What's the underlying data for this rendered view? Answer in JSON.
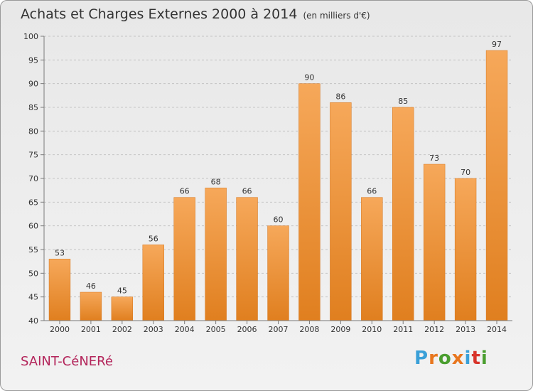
{
  "title": "Achats et Charges Externes 2000 à 2014",
  "subtitle": "(en milliers d'€)",
  "commune": "SAINT-CéNERé",
  "brand": {
    "text": "Proxiti",
    "letter_colors": [
      "#3aa0d8",
      "#e8761e",
      "#4a9e2f",
      "#e8761e",
      "#3aa0d8",
      "#d8342a",
      "#4a9e2f"
    ]
  },
  "colors": {
    "bar_top": "#f6a85a",
    "bar_bottom": "#e07f1f",
    "bar_edge": "#d5741a",
    "grid": "#c4c4c4",
    "axis": "#7a7a7a",
    "label": "#333333",
    "commune": "#b3245a"
  },
  "chart_data": {
    "type": "bar",
    "categories": [
      "2000",
      "2001",
      "2002",
      "2003",
      "2004",
      "2005",
      "2006",
      "2007",
      "2008",
      "2009",
      "2010",
      "2011",
      "2012",
      "2013",
      "2014"
    ],
    "values": [
      53,
      46,
      45,
      56,
      66,
      68,
      66,
      60,
      90,
      86,
      66,
      85,
      73,
      70,
      97
    ],
    "title": "Achats et Charges Externes 2000 à 2014",
    "subtitle": "(en milliers d'€)",
    "xlabel": "",
    "ylabel": "",
    "ylim": [
      40,
      100
    ],
    "yticks": [
      40,
      45,
      50,
      55,
      60,
      65,
      70,
      75,
      80,
      85,
      90,
      95,
      100
    ],
    "grid": true,
    "data_labels": true
  }
}
